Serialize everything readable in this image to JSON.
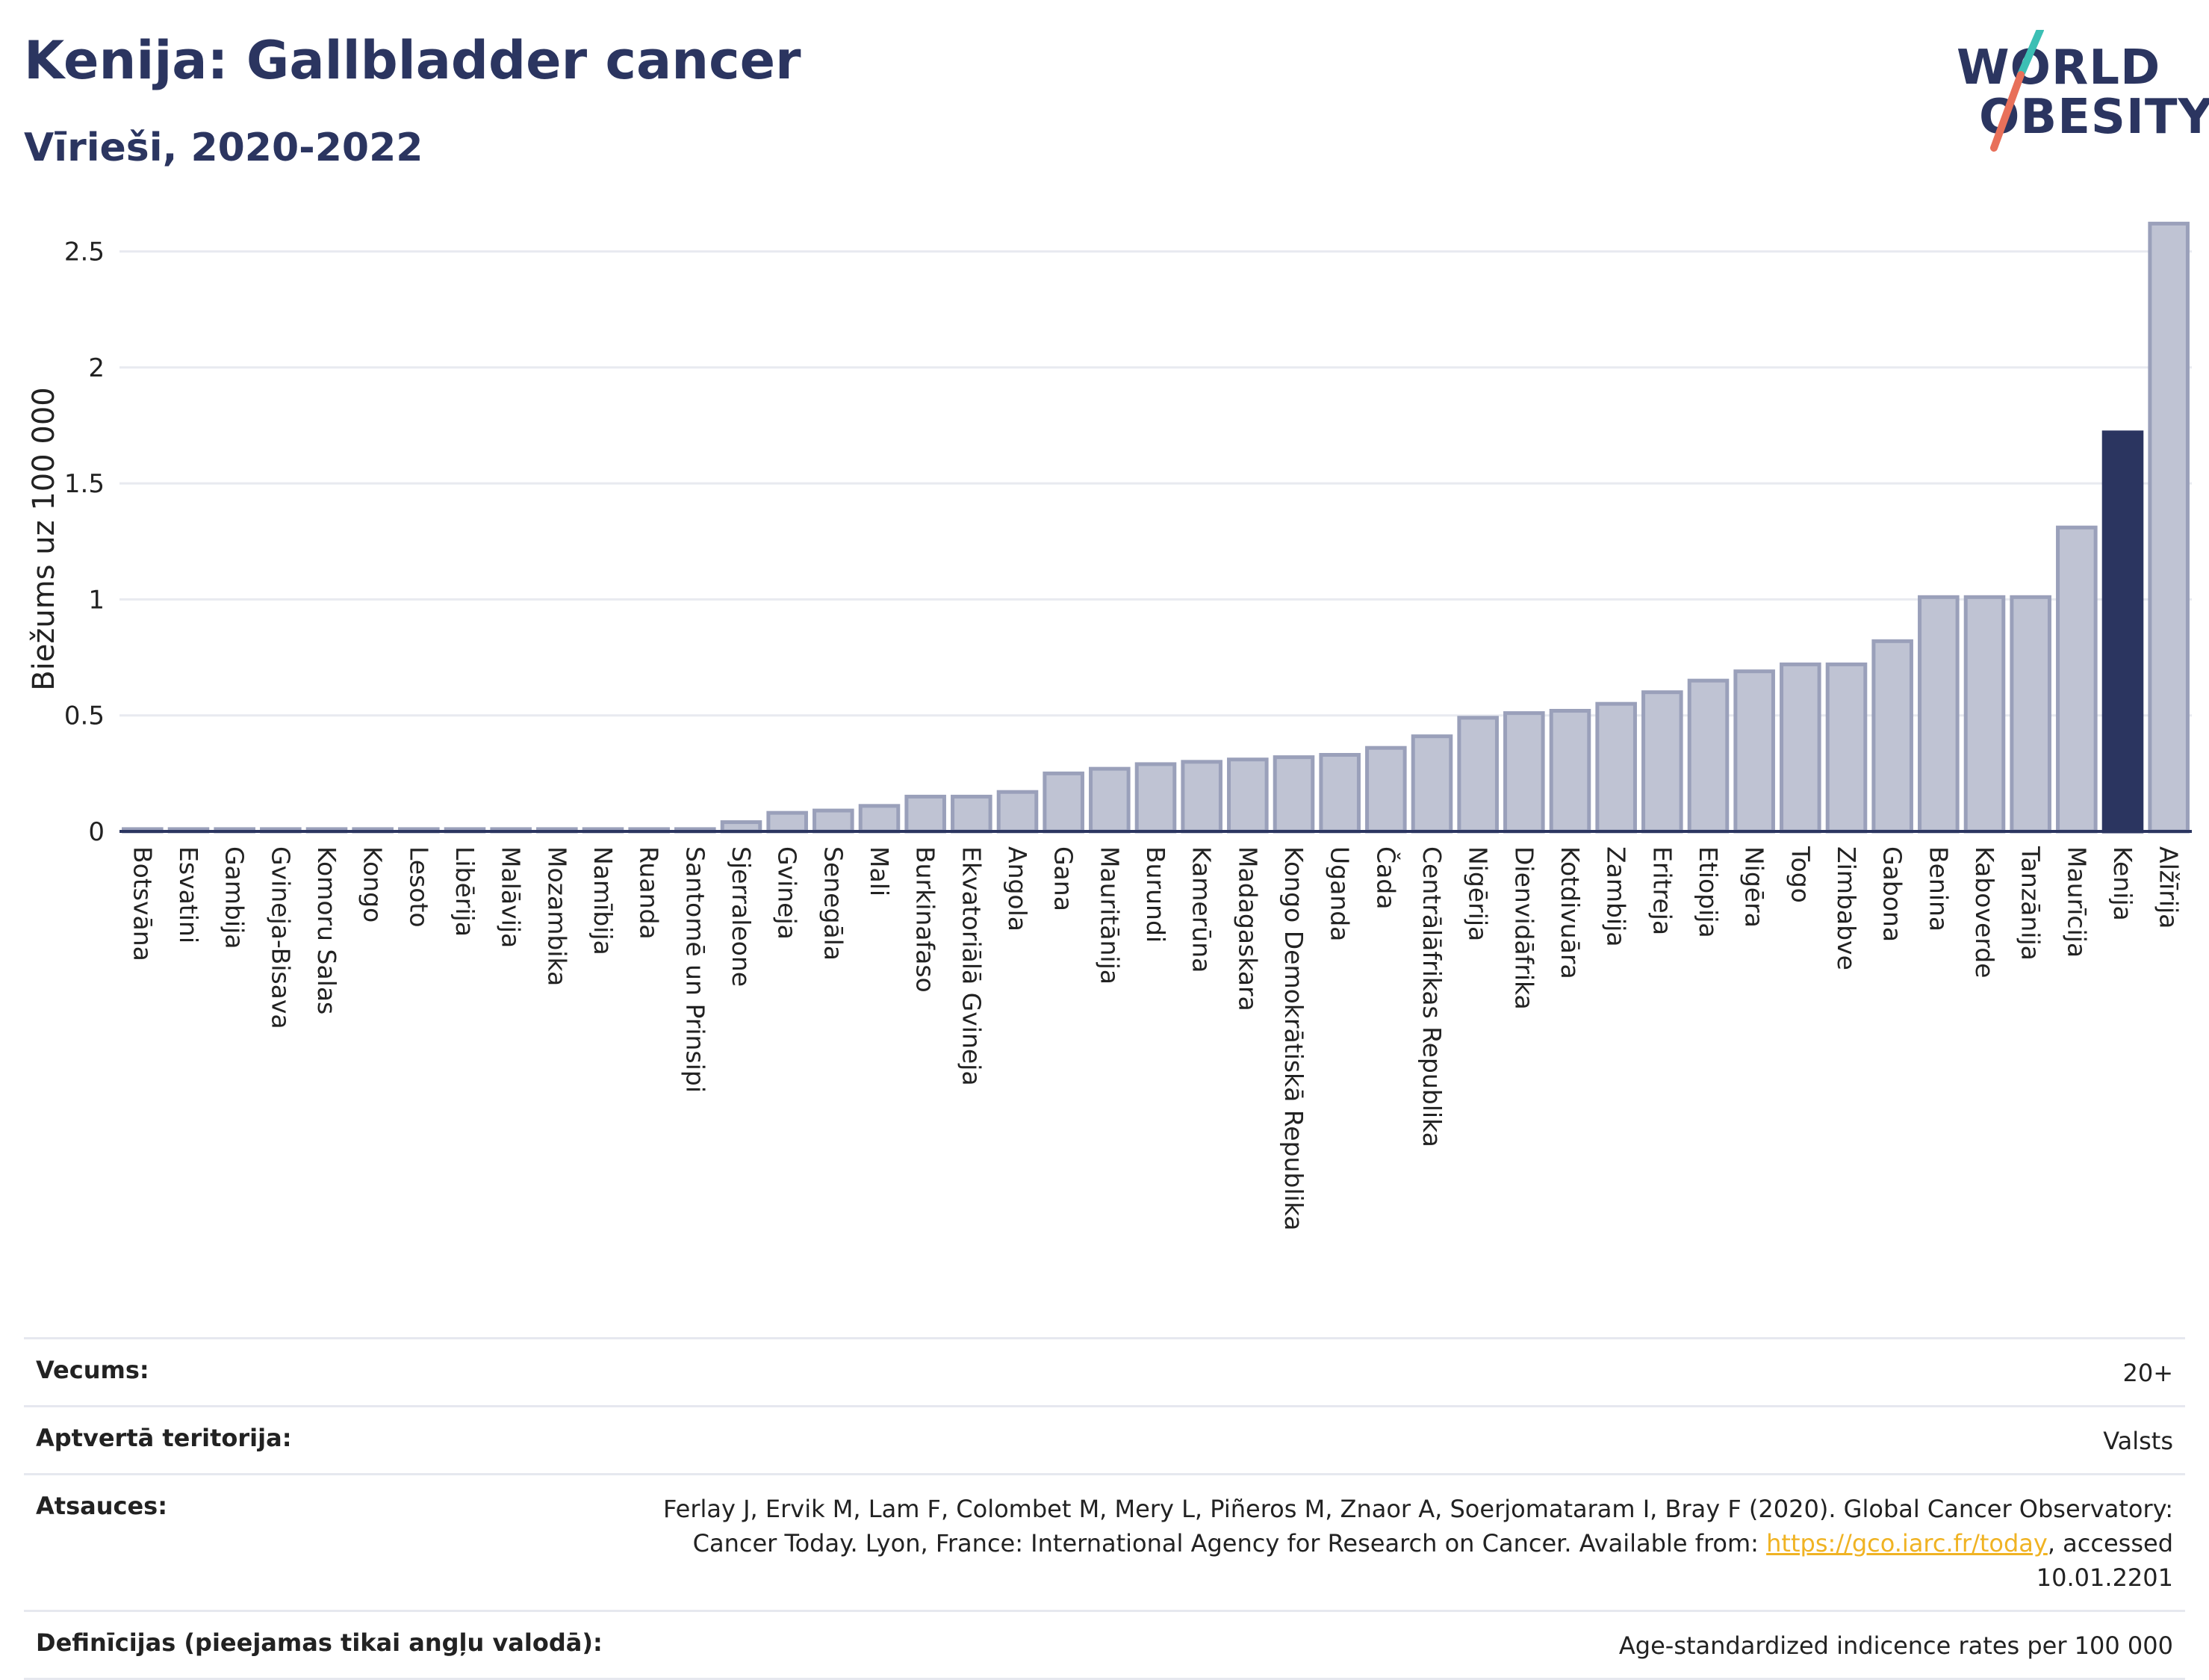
{
  "header": {
    "title": "Kenija: Gallbladder cancer",
    "subtitle": "Vīrieši, 2020-2022"
  },
  "logo": {
    "line1": "WORLD",
    "line2": "OBESITY",
    "colors": {
      "text": "#2b3560",
      "slash_top": "#3cbfb4",
      "slash_bottom": "#e8705a"
    }
  },
  "chart_data": {
    "type": "bar",
    "ylabel": "Biežums uz 100 000",
    "ylim": [
      0,
      2.65
    ],
    "yticks": [
      0,
      0.5,
      1,
      1.5,
      2,
      2.5
    ],
    "ytick_labels": [
      "0",
      "0.5",
      "1",
      "1.5",
      "2",
      "2.5"
    ],
    "grid": true,
    "highlight": "Kenija",
    "colors": {
      "bar": "#bfc3d3",
      "bar_border": "#9aa0ba",
      "highlight": "#2b3560"
    },
    "categories": [
      "Botsvāna",
      "Esvatini",
      "Gambija",
      "Gvineja-Bisava",
      "Komoru Salas",
      "Kongo",
      "Lesoto",
      "Libērija",
      "Malāvija",
      "Mozambika",
      "Namībija",
      "Ruanda",
      "Santomē un Prinsipi",
      "Sjerraleone",
      "Gvineja",
      "Senegāla",
      "Mali",
      "Burkinafaso",
      "Ekvatoriālā Gvineja",
      "Angola",
      "Gana",
      "Mauritānija",
      "Burundi",
      "Kamerūna",
      "Madagaskara",
      "Kongo Demokrātiskā Republika",
      "Uganda",
      "Čada",
      "Centrālāfrikas Republika",
      "Nigērija",
      "Dienvidāfrika",
      "Kotdivuāra",
      "Zambija",
      "Eritreja",
      "Etiopija",
      "Nigēra",
      "Togo",
      "Zimbabve",
      "Gabona",
      "Benina",
      "Kaboverde",
      "Tanzānija",
      "Maurīcija",
      "Kenija",
      "Alžīrija"
    ],
    "values": [
      0.01,
      0.01,
      0.01,
      0.01,
      0.01,
      0.01,
      0.01,
      0.01,
      0.01,
      0.01,
      0.01,
      0.01,
      0.01,
      0.04,
      0.08,
      0.09,
      0.11,
      0.15,
      0.15,
      0.17,
      0.25,
      0.27,
      0.29,
      0.3,
      0.31,
      0.32,
      0.33,
      0.36,
      0.41,
      0.49,
      0.51,
      0.52,
      0.55,
      0.6,
      0.65,
      0.69,
      0.72,
      0.72,
      0.82,
      1.01,
      1.01,
      1.01,
      1.31,
      1.72,
      2.62
    ]
  },
  "info": [
    {
      "label": "Vecums:",
      "value": "20+"
    },
    {
      "label": "Aptvertā teritorija:",
      "value": "Valsts"
    },
    {
      "label": "Atsauces:",
      "value_before": "Ferlay J, Ervik M, Lam F, Colombet M, Mery L, Piñeros M, Znaor A, Soerjomataram I, Bray F (2020). Global Cancer Observatory: Cancer Today. Lyon, France: International Agency for Research on Cancer. Available from: ",
      "link": "https://gco.iarc.fr/today",
      "value_after": ", accessed 10.01.2201"
    },
    {
      "label": "Definīcijas (pieejamas tikai angļu valodā):",
      "value": "Age-standardized indicence rates per 100 000"
    }
  ]
}
